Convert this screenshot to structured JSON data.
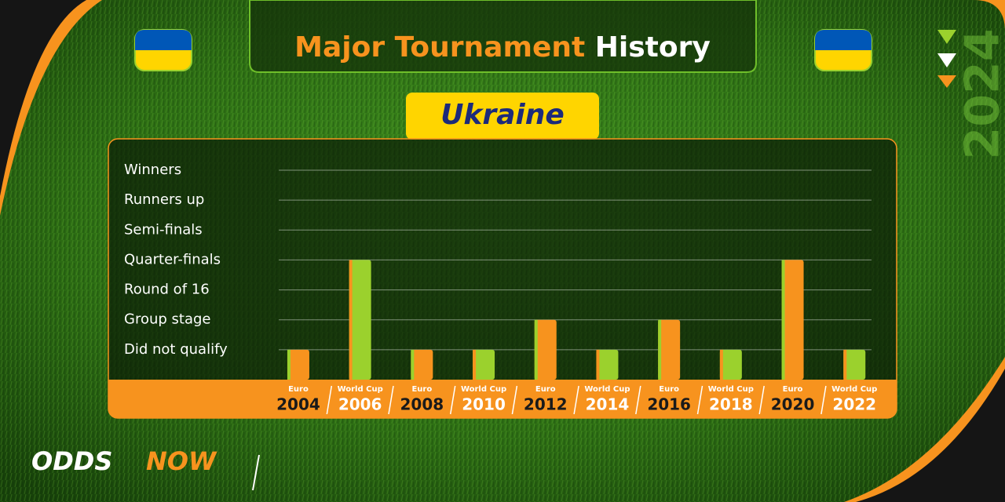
{
  "chart_data": {
    "type": "bar",
    "title_parts": [
      "Major Tournament",
      "History"
    ],
    "subtitle": "Ukraine",
    "categories": [
      "2004",
      "2006",
      "2008",
      "2010",
      "2012",
      "2014",
      "2016",
      "2018",
      "2020",
      "2022"
    ],
    "tournaments": [
      "Euro",
      "World Cup",
      "Euro",
      "World Cup",
      "Euro",
      "World Cup",
      "Euro",
      "World Cup",
      "Euro",
      "World Cup"
    ],
    "values": [
      1,
      4,
      1,
      1,
      2,
      1,
      2,
      1,
      4,
      1
    ],
    "colors": [
      "#f7931e",
      "#9bd12d",
      "#f7931e",
      "#9bd12d",
      "#f7931e",
      "#9bd12d",
      "#f7931e",
      "#9bd12d",
      "#f7931e",
      "#9bd12d"
    ],
    "edge_colors": [
      "#9bd12d",
      "#f7931e",
      "#9bd12d",
      "#f7931e",
      "#9bd12d",
      "#f7931e",
      "#9bd12d",
      "#f7931e",
      "#9bd12d",
      "#f7931e"
    ],
    "ylim": [
      0,
      7
    ],
    "yticks": [
      {
        "value": 7,
        "label": "Winners"
      },
      {
        "value": 6,
        "label": "Runners up"
      },
      {
        "value": 5,
        "label": "Semi-finals"
      },
      {
        "value": 4,
        "label": "Quarter-finals"
      },
      {
        "value": 3,
        "label": "Round of 16"
      },
      {
        "value": 2,
        "label": "Group stage"
      },
      {
        "value": 1,
        "label": "Did not qualify"
      }
    ],
    "grid": true
  },
  "branding": {
    "logo_parts": [
      "ODDS",
      "NOW"
    ],
    "year": "2024"
  }
}
